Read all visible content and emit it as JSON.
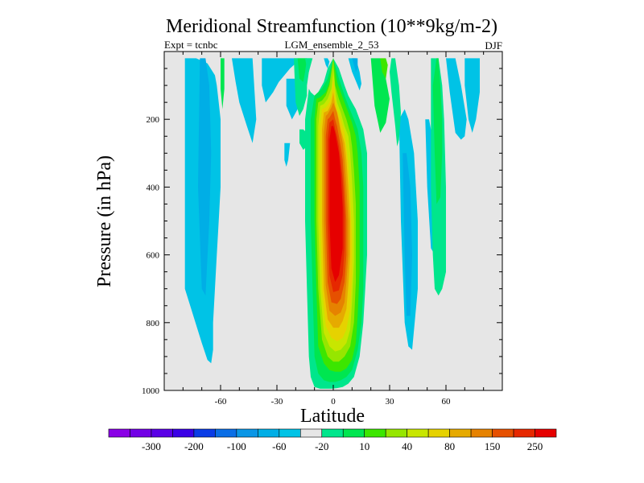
{
  "chart_data": {
    "type": "heatmap",
    "title": "Meridional Streamfunction (10**9kg/m-2)",
    "subtitle_left": "Expt = tcnbc",
    "subtitle_center": "LGM_ensemble_2_53",
    "subtitle_right": "DJF",
    "xlabel": "Latitude",
    "ylabel": "Pressure (in hPa)",
    "xlim": [
      -90,
      90
    ],
    "ylim": [
      0,
      1000
    ],
    "y_inverted": true,
    "x_ticks": [
      -60,
      -30,
      0,
      30,
      60
    ],
    "x_tick_labels": [
      "-60",
      "-30",
      "0",
      "30",
      "60"
    ],
    "y_ticks": [
      200,
      400,
      600,
      800,
      1000
    ],
    "y_tick_labels": [
      "200",
      "400",
      "600",
      "800",
      "1000"
    ],
    "background_color": "#e6e6e6",
    "colorbar": {
      "colors": [
        "#8a00e6",
        "#7200e6",
        "#5a00e6",
        "#3a00e6",
        "#0a3ce6",
        "#0a6ee6",
        "#0a96e6",
        "#00aee6",
        "#00c3e6",
        "#e6e6e6",
        "#00e68c",
        "#00e650",
        "#3ce600",
        "#96e600",
        "#c8e600",
        "#e6d200",
        "#e6aa00",
        "#e68200",
        "#e65000",
        "#e62800",
        "#e60000"
      ],
      "labels": [
        "-300",
        "-200",
        "-100",
        "-60",
        "-20",
        "10",
        "40",
        "80",
        "150",
        "250"
      ],
      "label_positions": [
        1,
        3,
        5,
        7,
        9,
        11,
        13,
        15,
        17,
        19
      ]
    },
    "regions": [
      {
        "color": "#00c3e6",
        "lat": [
          -79,
          -79,
          -70,
          -67,
          -65,
          -64,
          -64,
          -63,
          -62,
          -61,
          -60,
          -60,
          -60,
          -61,
          -62,
          -63,
          -67,
          -73,
          -77
        ],
        "p": [
          20,
          700,
          860,
          910,
          920,
          880,
          800,
          700,
          600,
          500,
          400,
          300,
          200,
          150,
          100,
          70,
          35,
          20,
          20
        ]
      },
      {
        "color": "#00aee6",
        "lat": [
          -71,
          -72,
          -70,
          -68,
          -66,
          -65,
          -66,
          -68
        ],
        "p": [
          20,
          400,
          700,
          720,
          500,
          300,
          100,
          20
        ]
      },
      {
        "color": "#00c3e6",
        "lat": [
          -54,
          -52,
          -50,
          -46,
          -43,
          -41,
          -43
        ],
        "p": [
          20,
          90,
          150,
          220,
          270,
          200,
          20
        ]
      },
      {
        "color": "#00c3e6",
        "lat": [
          -38,
          -38,
          -36,
          -32,
          -29,
          -26,
          -23,
          -20,
          -19,
          -20
        ],
        "p": [
          20,
          100,
          150,
          120,
          90,
          70,
          50,
          35,
          20,
          20
        ]
      },
      {
        "color": "#00c3e6",
        "lat": [
          -25,
          -25,
          -22,
          -19,
          -17,
          -18
        ],
        "p": [
          80,
          160,
          200,
          170,
          120,
          80
        ]
      },
      {
        "color": "#00c3e6",
        "lat": [
          -26,
          -26,
          -25,
          -24,
          -23
        ],
        "p": [
          270,
          320,
          340,
          320,
          270
        ]
      },
      {
        "color": "#00c3e6",
        "lat": [
          78,
          78,
          76,
          74,
          72,
          71,
          70,
          70,
          73
        ],
        "p": [
          20,
          120,
          200,
          240,
          200,
          150,
          100,
          20,
          20
        ]
      },
      {
        "color": "#00c3e6",
        "lat": [
          60,
          62,
          65,
          68,
          70,
          71,
          68,
          65
        ],
        "p": [
          20,
          120,
          240,
          260,
          250,
          200,
          100,
          20
        ]
      },
      {
        "color": "#00c3e6",
        "lat": [
          35,
          36,
          38,
          40,
          42,
          45,
          45,
          43,
          40,
          38
        ],
        "p": [
          200,
          500,
          800,
          870,
          880,
          700,
          500,
          300,
          200,
          170
        ]
      },
      {
        "color": "#00aee6",
        "lat": [
          37,
          38,
          39,
          41,
          42,
          41,
          39
        ],
        "p": [
          300,
          600,
          780,
          780,
          600,
          400,
          300
        ]
      },
      {
        "color": "#00c3e6",
        "lat": [
          49,
          50,
          52,
          54,
          55,
          55,
          53,
          51
        ],
        "p": [
          200,
          400,
          580,
          600,
          540,
          400,
          260,
          200
        ]
      },
      {
        "color": "#00e68c",
        "lat": [
          -21,
          -20,
          -18,
          -16,
          -14,
          -14,
          -13,
          -12,
          -14,
          -17
        ],
        "p": [
          20,
          150,
          190,
          170,
          130,
          100,
          60,
          20,
          20,
          20
        ]
      },
      {
        "color": "#00e650",
        "lat": [
          -19,
          -18,
          -16,
          -15,
          -14,
          -16
        ],
        "p": [
          20,
          80,
          90,
          60,
          20,
          20
        ]
      },
      {
        "color": "#00e650",
        "lat": [
          -60,
          -60,
          -59,
          -58,
          -58
        ],
        "p": [
          20,
          110,
          170,
          110,
          20
        ]
      },
      {
        "color": "#00e650",
        "lat": [
          20,
          22,
          25,
          28,
          30,
          28,
          25,
          22
        ],
        "p": [
          20,
          160,
          240,
          210,
          140,
          80,
          20,
          20
        ]
      },
      {
        "color": "#00e68c",
        "lat": [
          30,
          31,
          33,
          34,
          35,
          36,
          35,
          34,
          33,
          31
        ],
        "p": [
          60,
          120,
          220,
          280,
          260,
          180,
          100,
          60,
          20,
          20
        ]
      },
      {
        "color": "#3ce600",
        "lat": [
          25,
          26,
          28,
          29,
          28
        ],
        "p": [
          20,
          60,
          80,
          40,
          20
        ]
      },
      {
        "color": "#00e68c",
        "lat": [
          52,
          52,
          53,
          54,
          56,
          58,
          60,
          60,
          59,
          58,
          56,
          54
        ],
        "p": [
          20,
          400,
          600,
          700,
          720,
          700,
          650,
          400,
          200,
          100,
          20,
          20
        ]
      },
      {
        "color": "#00e650",
        "lat": [
          53,
          54,
          55,
          57,
          58,
          58,
          57,
          56,
          55
        ],
        "p": [
          100,
          300,
          450,
          430,
          300,
          200,
          100,
          20,
          20
        ]
      },
      {
        "color": "#00e68c",
        "lat": [
          -15,
          -14,
          -13,
          -12,
          -11
        ],
        "p": [
          20,
          50,
          60,
          40,
          20
        ]
      },
      {
        "color": "#00e68c",
        "lat": [
          -18,
          -18,
          -16,
          -14,
          -14,
          -14,
          -16
        ],
        "p": [
          230,
          270,
          290,
          280,
          260,
          240,
          230
        ]
      },
      {
        "color": "#00e68c",
        "lat": [
          -13,
          -15,
          -15,
          -15,
          -14,
          -13,
          -12,
          -10,
          -7,
          -4,
          -1,
          2,
          5,
          8,
          11,
          14,
          16,
          17,
          18,
          18,
          18,
          16,
          14,
          12,
          10,
          8,
          6,
          3,
          0,
          -3,
          -5,
          -8,
          -10,
          -12
        ],
        "p": [
          110,
          200,
          300,
          500,
          700,
          900,
          960,
          990,
          995,
          995,
          995,
          993,
          990,
          980,
          960,
          900,
          800,
          700,
          600,
          400,
          300,
          230,
          200,
          170,
          150,
          130,
          100,
          50,
          20,
          50,
          90,
          120,
          130,
          120
        ]
      },
      {
        "color": "#00e650",
        "lat": [
          -10,
          -12,
          -12,
          -12,
          -11,
          -10,
          -8,
          -5,
          -2,
          1,
          4,
          7,
          10,
          13,
          15,
          16,
          16,
          16,
          15,
          13,
          11,
          8,
          6,
          3,
          0,
          -3,
          -6,
          -8
        ],
        "p": [
          130,
          200,
          300,
          500,
          700,
          900,
          950,
          970,
          975,
          975,
          970,
          960,
          940,
          880,
          800,
          700,
          600,
          400,
          300,
          230,
          200,
          160,
          130,
          80,
          20,
          80,
          110,
          120
        ]
      },
      {
        "color": "#3ce600",
        "lat": [
          -9,
          -10,
          -10,
          -10,
          -9,
          -8,
          -5,
          -2,
          1,
          4,
          7,
          10,
          12,
          13,
          14,
          14,
          14,
          13,
          12,
          10,
          8,
          6,
          4,
          2,
          0,
          -2,
          -4,
          -7
        ],
        "p": [
          140,
          200,
          300,
          500,
          700,
          870,
          920,
          940,
          945,
          945,
          935,
          910,
          860,
          780,
          650,
          500,
          400,
          300,
          250,
          210,
          180,
          150,
          120,
          90,
          20,
          90,
          120,
          135
        ]
      },
      {
        "color": "#96e600",
        "lat": [
          -8,
          -9,
          -9,
          -9,
          -8,
          -6,
          -3,
          0,
          3,
          6,
          9,
          11,
          12,
          12,
          12,
          11,
          10,
          9,
          7,
          5,
          3,
          1,
          0,
          -2,
          -4,
          -6
        ],
        "p": [
          150,
          200,
          300,
          500,
          700,
          850,
          900,
          915,
          915,
          900,
          870,
          800,
          680,
          550,
          450,
          350,
          280,
          240,
          200,
          170,
          140,
          100,
          20,
          100,
          130,
          145
        ]
      },
      {
        "color": "#c8e600",
        "lat": [
          -7,
          -8,
          -8,
          -8,
          -7,
          -5,
          -2,
          1,
          4,
          7,
          9,
          10,
          11,
          11,
          10,
          9,
          8,
          6,
          4,
          2,
          1,
          0,
          -1,
          -3,
          -5
        ],
        "p": [
          160,
          220,
          300,
          500,
          700,
          830,
          870,
          885,
          880,
          860,
          820,
          740,
          620,
          500,
          380,
          300,
          250,
          220,
          180,
          150,
          110,
          50,
          110,
          140,
          155
        ]
      },
      {
        "color": "#e6d200",
        "lat": [
          -6,
          -7,
          -7,
          -7,
          -6,
          -4,
          -1,
          2,
          5,
          7,
          9,
          10,
          10,
          9,
          8,
          7,
          6,
          4,
          2,
          1,
          0,
          -1,
          -2,
          -4
        ],
        "p": [
          170,
          220,
          300,
          500,
          700,
          810,
          845,
          855,
          845,
          820,
          760,
          660,
          550,
          420,
          330,
          280,
          240,
          200,
          170,
          130,
          80,
          130,
          150,
          165
        ]
      },
      {
        "color": "#e6aa00",
        "lat": [
          -5,
          -6,
          -6,
          -6,
          -5,
          -3,
          0,
          3,
          5,
          7,
          8,
          9,
          9,
          8,
          7,
          6,
          4,
          3,
          1,
          0,
          -1,
          -2,
          -3
        ],
        "p": [
          180,
          230,
          300,
          500,
          700,
          790,
          815,
          815,
          795,
          760,
          690,
          600,
          500,
          400,
          320,
          270,
          230,
          200,
          160,
          120,
          150,
          165,
          175
        ]
      },
      {
        "color": "#e68200",
        "lat": [
          -4,
          -5,
          -5,
          -5,
          -4,
          -2,
          1,
          4,
          6,
          7,
          8,
          8,
          7,
          6,
          5,
          4,
          3,
          2,
          0,
          -1,
          -2,
          -3
        ],
        "p": [
          190,
          240,
          300,
          500,
          690,
          765,
          780,
          770,
          740,
          680,
          600,
          500,
          400,
          320,
          270,
          240,
          210,
          180,
          150,
          165,
          175,
          185
        ]
      },
      {
        "color": "#e65000",
        "lat": [
          -3,
          -4,
          -4,
          -4,
          -3,
          -1,
          2,
          4,
          6,
          7,
          7,
          6,
          5,
          4,
          3,
          2,
          1,
          0,
          -1,
          -2
        ],
        "p": [
          200,
          250,
          300,
          500,
          680,
          740,
          745,
          730,
          680,
          600,
          500,
          400,
          320,
          280,
          250,
          220,
          200,
          175,
          185,
          195
        ]
      },
      {
        "color": "#e62800",
        "lat": [
          -2,
          -3,
          -3,
          -3,
          -2,
          0,
          3,
          5,
          6,
          6,
          5,
          4,
          3,
          2,
          1,
          0,
          -1
        ],
        "p": [
          210,
          260,
          300,
          500,
          660,
          710,
          705,
          660,
          580,
          480,
          380,
          320,
          280,
          250,
          230,
          200,
          205
        ]
      },
      {
        "color": "#e60000",
        "lat": [
          -1,
          -2,
          -2,
          -2,
          -1,
          1,
          3,
          5,
          5,
          4,
          3,
          2,
          1,
          0
        ],
        "p": [
          220,
          260,
          300,
          500,
          640,
          680,
          660,
          580,
          460,
          360,
          300,
          270,
          240,
          220
        ]
      },
      {
        "color": "#00c3e6",
        "lat": [
          8,
          10,
          13,
          14,
          15,
          14,
          12,
          10
        ],
        "p": [
          20,
          60,
          100,
          115,
          95,
          60,
          20,
          20
        ]
      },
      {
        "color": "#00aee6",
        "lat": [
          10,
          11,
          12,
          13,
          13,
          12
        ],
        "p": [
          20,
          40,
          60,
          50,
          20,
          20
        ]
      },
      {
        "color": "#00c3e6",
        "lat": [
          -5,
          -4,
          -3,
          -2,
          -3
        ],
        "p": [
          20,
          40,
          50,
          30,
          20
        ]
      }
    ]
  }
}
